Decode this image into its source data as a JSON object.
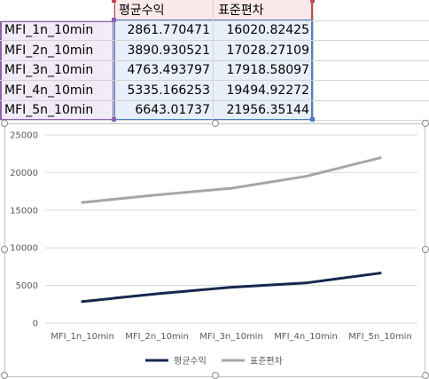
{
  "table": {
    "headers": [
      "평균수익",
      "표준편차"
    ],
    "rows": [
      {
        "label": "MFI_1n_10min",
        "avg": "2861.770471",
        "std": "16020.82425"
      },
      {
        "label": "MFI_2n_10min",
        "avg": "3890.930521",
        "std": "17028.27109"
      },
      {
        "label": "MFI_3n_10min",
        "avg": "4763.493797",
        "std": "17918.58097"
      },
      {
        "label": "MFI_4n_10min",
        "avg": "5335.166253",
        "std": "19494.92272"
      },
      {
        "label": "MFI_5n_10min",
        "avg": "6643.01737",
        "std": "21956.35144"
      }
    ]
  },
  "chart_data": {
    "type": "line",
    "categories": [
      "MFI_1n_10min",
      "MFI_2n_10min",
      "MFI_3n_10min",
      "MFI_4n_10min",
      "MFI_5n_10min"
    ],
    "series": [
      {
        "name": "평균수익",
        "values": [
          2861.770471,
          3890.930521,
          4763.493797,
          5335.166253,
          6643.01737
        ],
        "color": "#17284d"
      },
      {
        "name": "표준편차",
        "values": [
          16020.82425,
          17028.27109,
          17918.58097,
          19494.92272,
          21956.35144
        ],
        "color": "#a6a6a6"
      }
    ],
    "yticks": [
      "0",
      "5000",
      "10000",
      "15000",
      "20000",
      "25000"
    ],
    "ylim": [
      0,
      25000
    ],
    "grid": true,
    "legend": "bottom"
  },
  "colors": {
    "category_range": "#8c62b1",
    "header_range": "#c3494f",
    "value_range": "#4f7cbf",
    "gridline": "#d9d9d9"
  }
}
